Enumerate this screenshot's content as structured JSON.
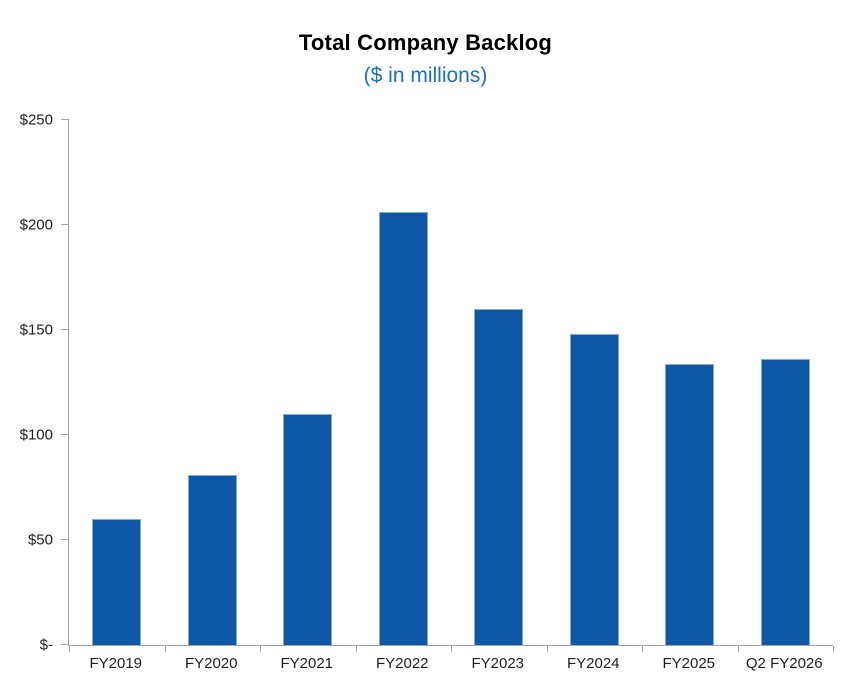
{
  "chart_data": {
    "type": "bar",
    "title": "Total Company Backlog",
    "subtitle": "($ in millions)",
    "categories": [
      "FY2019",
      "FY2020",
      "FY2021",
      "FY2022",
      "FY2023",
      "FY2024",
      "FY2025",
      "Q2 FY2026"
    ],
    "values": [
      60,
      81,
      110,
      206,
      160,
      148,
      134,
      136
    ],
    "xlabel": "",
    "ylabel": "",
    "ylim": [
      0,
      250
    ],
    "ytick_values": [
      0,
      50,
      100,
      150,
      200,
      250
    ],
    "ytick_labels": [
      "$-",
      "$50",
      "$100",
      "$150",
      "$200",
      "$250"
    ],
    "grid": "off",
    "legend": "none",
    "colors": {
      "bar_fill": "#0d57a6",
      "bar_border": "#8ba7cf",
      "title_text": "#000000",
      "subtitle_text": "#1f6fc1",
      "axis_line": "#a3a3a3",
      "tick_text": "#1f1f1f"
    }
  }
}
